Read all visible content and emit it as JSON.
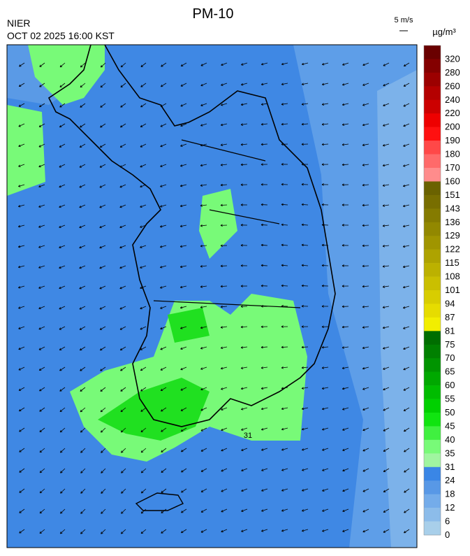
{
  "header": {
    "title": "PM-10",
    "agency": "NIER",
    "datetime": "OCT 02 2025 16:00 KST",
    "wind_scale": "5 m/s",
    "unit": "µg/m³"
  },
  "map": {
    "contour_label": "31"
  },
  "colorbar": {
    "ticks": [
      320,
      280,
      260,
      240,
      220,
      200,
      190,
      180,
      170,
      160,
      151,
      143,
      136,
      129,
      122,
      115,
      108,
      101,
      94,
      87,
      81,
      75,
      70,
      65,
      60,
      55,
      50,
      45,
      40,
      35,
      31,
      24,
      18,
      12,
      6,
      0
    ],
    "colors": [
      "#6a0000",
      "#840000",
      "#9c0000",
      "#b40000",
      "#cc0000",
      "#ee0000",
      "#ff1010",
      "#ff4848",
      "#ff6a6a",
      "#ff8c8c",
      "#6a6200",
      "#786e00",
      "#857b00",
      "#928800",
      "#a09500",
      "#aea300",
      "#bcb100",
      "#cabf00",
      "#d8cd00",
      "#e6dc00",
      "#f2ee00",
      "#006e00",
      "#008000",
      "#009400",
      "#00a800",
      "#00bc00",
      "#00d000",
      "#10e410",
      "#40f040",
      "#78fa78",
      "#a0f5a0",
      "#3a86e6",
      "#5898e6",
      "#74acea",
      "#8cbcea",
      "#a8cfea"
    ]
  }
}
